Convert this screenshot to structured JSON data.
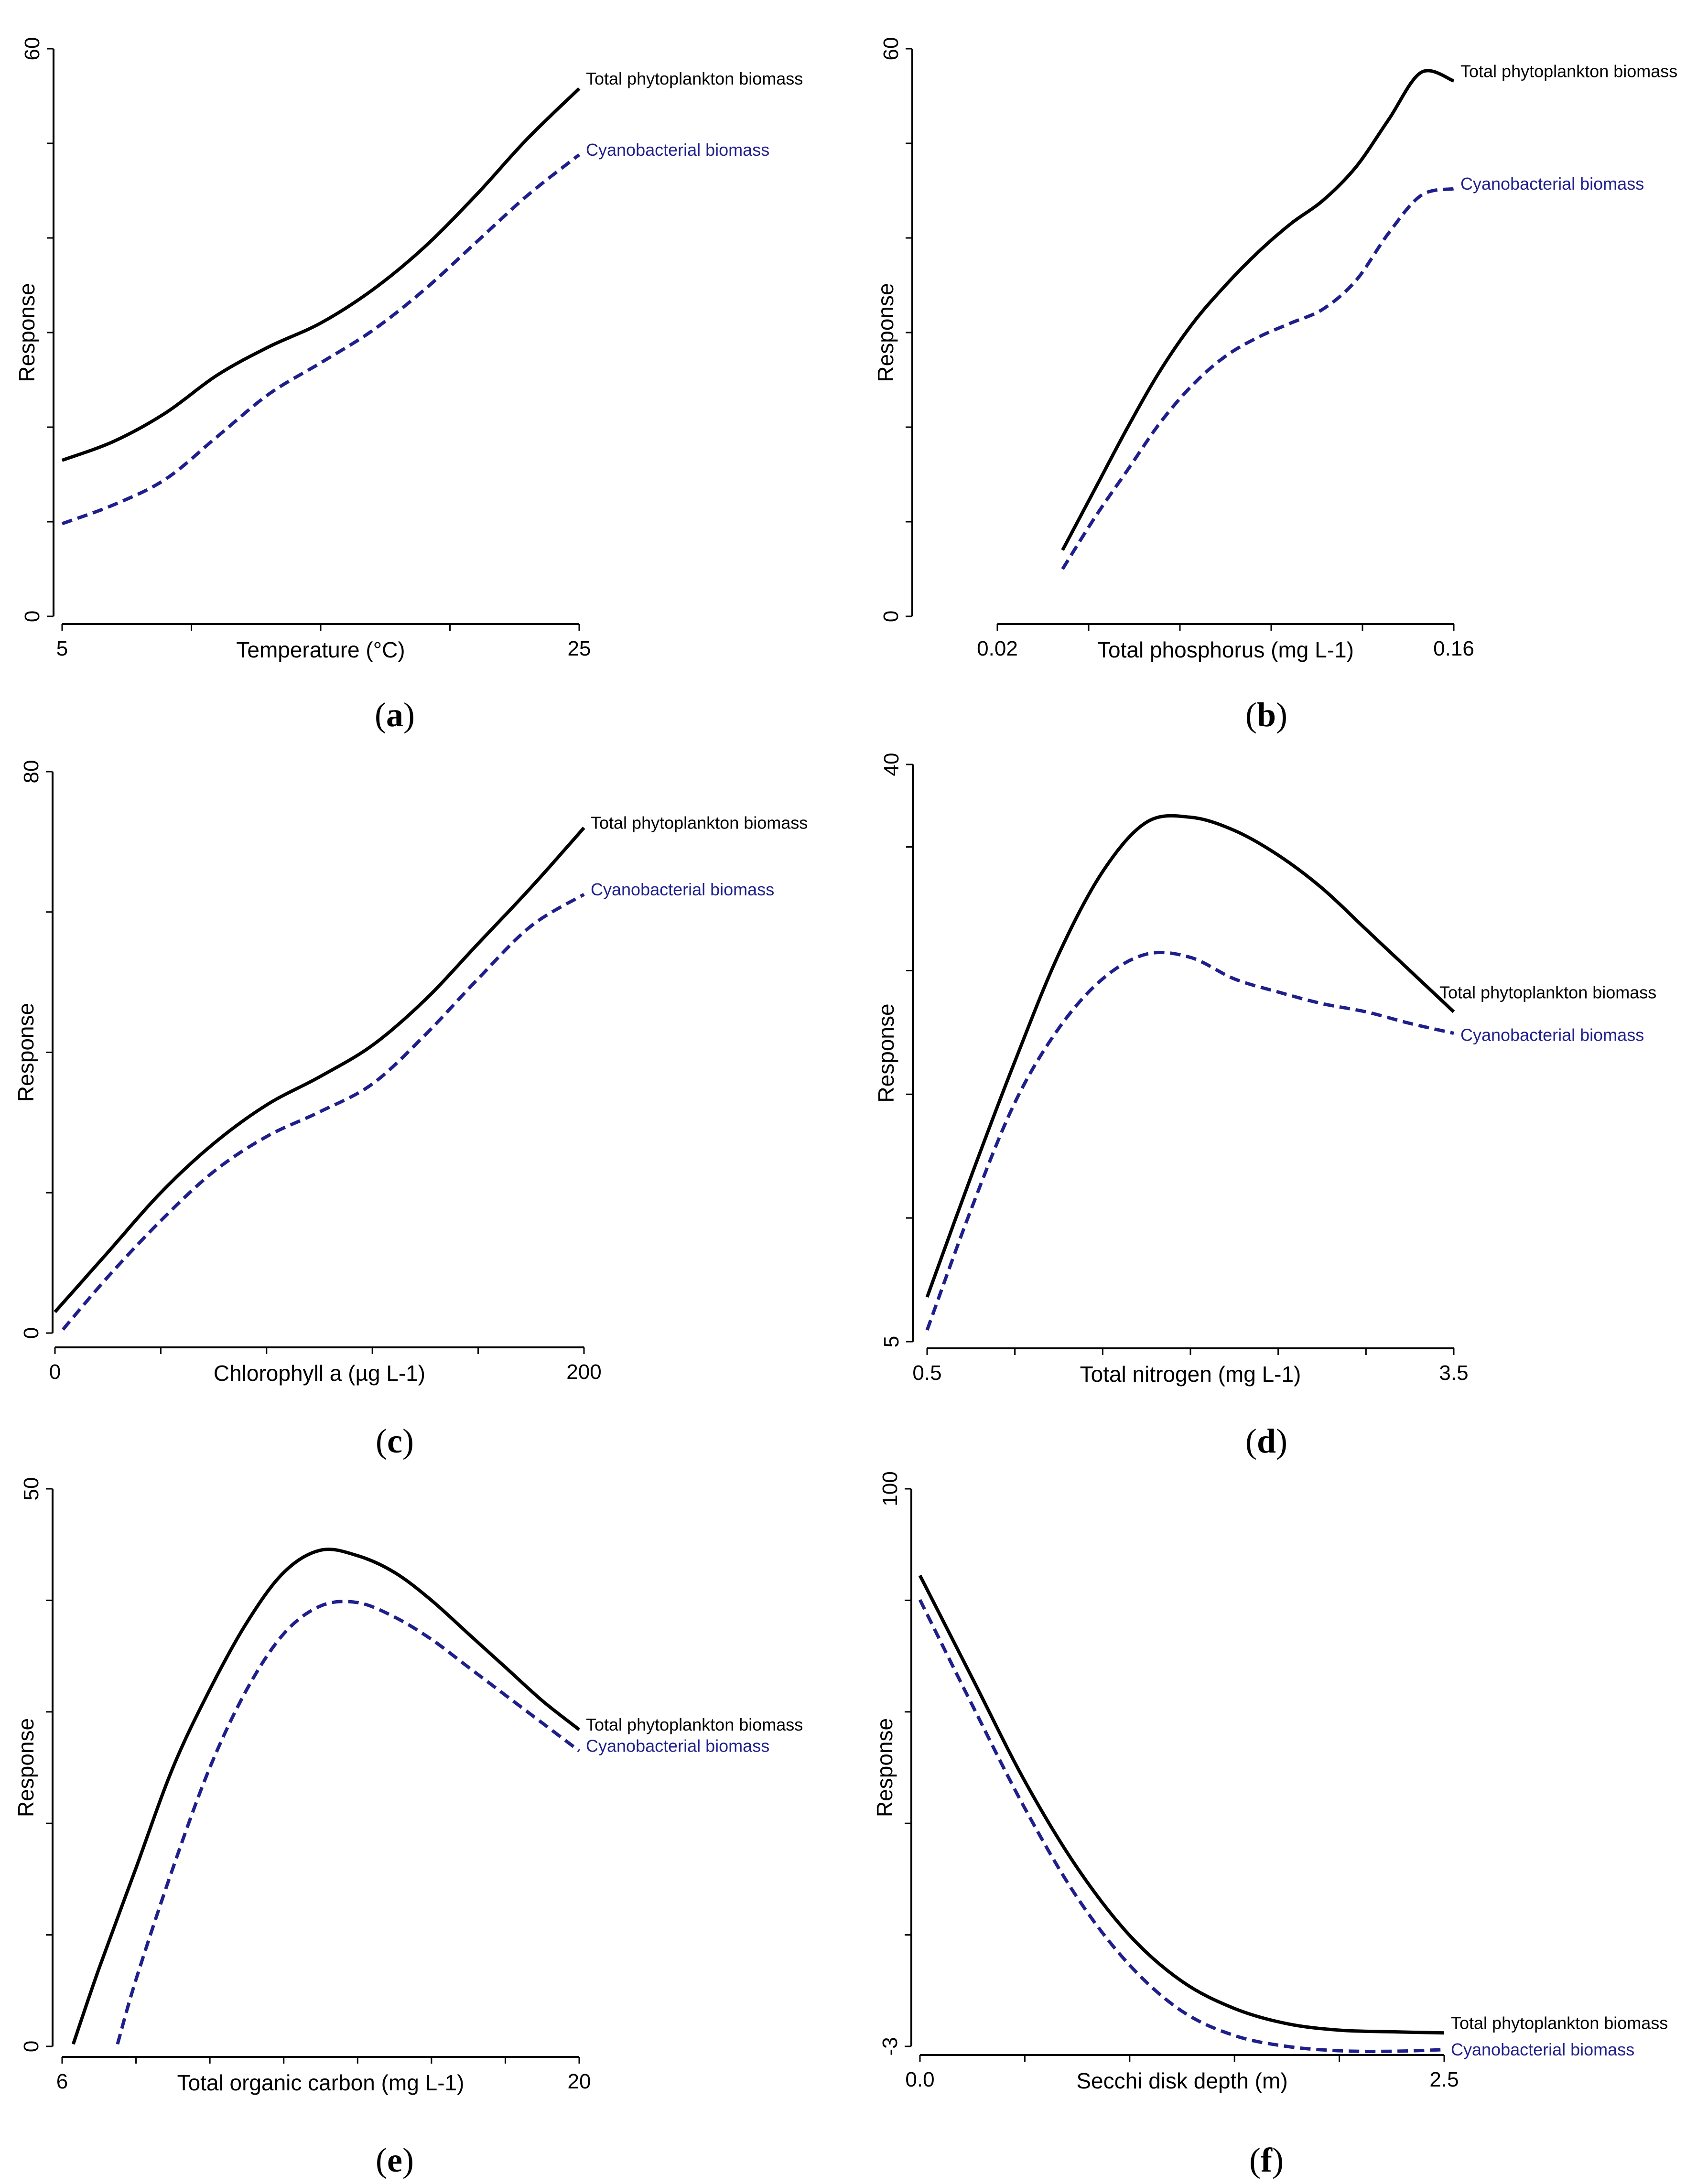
{
  "figure_labels": {
    "y_title": "Response",
    "series_total": "Total phytoplankton biomass",
    "series_cyano": "Cyanobacterial biomass"
  },
  "colors": {
    "total": "#000000",
    "cyano": "#1f1f8c",
    "axis": "#000000"
  },
  "chart_data": [
    {
      "type": "line",
      "panel": "(a)",
      "panel_letter": "a",
      "xlabel": "Temperature (°C)",
      "ylabel": "Response",
      "xlim": [
        5,
        25
      ],
      "ylim": [
        0,
        60
      ],
      "xticklabels": [
        {
          "v": 5,
          "t": "5"
        },
        {
          "v": 25,
          "t": "25"
        }
      ],
      "yticklabels": [
        {
          "v": 0,
          "t": "0"
        },
        {
          "v": 60,
          "t": "60"
        }
      ],
      "x_minor_ticks": [
        5,
        10,
        15,
        20,
        25
      ],
      "y_minor_ticks": [
        0,
        10,
        20,
        30,
        40,
        50,
        60
      ],
      "series": [
        {
          "name": "Total phytoplankton biomass",
          "style": "solid",
          "x": [
            5,
            7,
            9,
            11,
            13,
            15,
            17,
            19,
            21,
            23,
            25
          ],
          "values": [
            16.5,
            18.5,
            21.5,
            25.5,
            28.5,
            31,
            34.5,
            39,
            44.5,
            50.5,
            55.8
          ]
        },
        {
          "name": "Cyanobacterial biomass",
          "style": "dashed",
          "x": [
            5,
            7,
            9,
            11,
            13,
            15,
            17,
            19,
            21,
            23,
            25
          ],
          "values": [
            9.8,
            11.8,
            14.5,
            19,
            23.5,
            26.8,
            30.2,
            34.5,
            39.5,
            44.5,
            48.8
          ]
        }
      ]
    },
    {
      "type": "line",
      "panel": "(b)",
      "panel_letter": "b",
      "xlabel": "Total phosphorus (mg L-1)",
      "ylabel": "Response",
      "xlim": [
        0.02,
        0.16
      ],
      "ylim": [
        0,
        60
      ],
      "xticklabels": [
        {
          "v": 0.02,
          "t": "0.02"
        },
        {
          "v": 0.16,
          "t": "0.16"
        }
      ],
      "yticklabels": [
        {
          "v": 0,
          "t": "0"
        },
        {
          "v": 60,
          "t": "60"
        }
      ],
      "x_minor_ticks": [
        0.02,
        0.048,
        0.076,
        0.104,
        0.132,
        0.16
      ],
      "y_minor_ticks": [
        0,
        10,
        20,
        30,
        40,
        50,
        60
      ],
      "series": [
        {
          "name": "Total phytoplankton biomass",
          "style": "solid",
          "x": [
            0.04,
            0.05,
            0.06,
            0.07,
            0.08,
            0.09,
            0.1,
            0.11,
            0.12,
            0.13,
            0.14,
            0.15,
            0.16
          ],
          "values": [
            7,
            13.5,
            20,
            26,
            31,
            35,
            38.5,
            41.5,
            44,
            47.5,
            52.5,
            57.5,
            56.6
          ]
        },
        {
          "name": "Cyanobacterial biomass",
          "style": "dashed",
          "x": [
            0.04,
            0.05,
            0.06,
            0.07,
            0.08,
            0.09,
            0.1,
            0.11,
            0.12,
            0.13,
            0.14,
            0.15,
            0.16
          ],
          "values": [
            5,
            10.5,
            15.5,
            20.5,
            24.5,
            27.5,
            29.5,
            31,
            32.5,
            35.5,
            40.5,
            44.5,
            45.2
          ]
        }
      ]
    },
    {
      "type": "line",
      "panel": "(c)",
      "panel_letter": "c",
      "xlabel": "Chlorophyll a  (µg L-1)",
      "ylabel": "Response",
      "xlim": [
        0,
        200
      ],
      "ylim": [
        0,
        80
      ],
      "xticklabels": [
        {
          "v": 0,
          "t": "0"
        },
        {
          "v": 200,
          "t": "200"
        }
      ],
      "yticklabels": [
        {
          "v": 0,
          "t": "0"
        },
        {
          "v": 80,
          "t": "80"
        }
      ],
      "x_minor_ticks": [
        0,
        40,
        80,
        120,
        160,
        200
      ],
      "y_minor_ticks": [
        0,
        20,
        40,
        60,
        80
      ],
      "series": [
        {
          "name": "Total phytoplankton biomass",
          "style": "solid",
          "x": [
            0,
            20,
            40,
            60,
            80,
            100,
            120,
            140,
            160,
            180,
            200
          ],
          "values": [
            3,
            11.5,
            20,
            27,
            32.5,
            36.5,
            41,
            47.5,
            55.5,
            63.5,
            72
          ]
        },
        {
          "name": "Cyanobacterial biomass",
          "style": "dashed",
          "x": [
            3,
            20,
            40,
            60,
            80,
            100,
            120,
            140,
            160,
            180,
            200
          ],
          "values": [
            0.5,
            8,
            16,
            23,
            28,
            31.5,
            35.5,
            42.5,
            50.5,
            58,
            62.5
          ]
        }
      ]
    },
    {
      "type": "line",
      "panel": "(d)",
      "panel_letter": "d",
      "xlabel": "Total nitrogen (mg L-1)",
      "ylabel": "Response",
      "xlim": [
        0.5,
        3.5
      ],
      "ylim": [
        5,
        40
      ],
      "xticklabels": [
        {
          "v": 0.5,
          "t": "0.5"
        },
        {
          "v": 3.5,
          "t": "3.5"
        }
      ],
      "yticklabels": [
        {
          "v": 5,
          "t": "5"
        },
        {
          "v": 40,
          "t": "40"
        }
      ],
      "x_minor_ticks": [
        0.5,
        1.0,
        1.5,
        2.0,
        2.5,
        3.0,
        3.5
      ],
      "y_minor_ticks": [
        5,
        12.5,
        20,
        27.5,
        35,
        40
      ],
      "series": [
        {
          "name": "Total phytoplankton biomass",
          "style": "solid",
          "x": [
            0.5,
            0.75,
            1.0,
            1.25,
            1.5,
            1.75,
            2.0,
            2.25,
            2.5,
            2.75,
            3.0,
            3.25,
            3.5
          ],
          "values": [
            7.7,
            15,
            22,
            28.5,
            33.5,
            36.5,
            36.8,
            36,
            34.5,
            32.5,
            30,
            27.5,
            25
          ]
        },
        {
          "name": "Cyanobacterial biomass",
          "style": "dashed",
          "x": [
            0.5,
            0.75,
            1.0,
            1.25,
            1.5,
            1.75,
            2.0,
            2.25,
            2.5,
            2.75,
            3.0,
            3.25,
            3.5
          ],
          "values": [
            5.7,
            13,
            19.5,
            24,
            27,
            28.5,
            28.3,
            27,
            26.2,
            25.5,
            25,
            24.3,
            23.7
          ]
        }
      ]
    },
    {
      "type": "line",
      "panel": "(e)",
      "panel_letter": "e",
      "xlabel": "Total organic carbon (mg L-1)",
      "ylabel": "Response",
      "xlim": [
        6,
        20
      ],
      "ylim": [
        0,
        50
      ],
      "xticklabels": [
        {
          "v": 6,
          "t": "6"
        },
        {
          "v": 20,
          "t": "20"
        }
      ],
      "yticklabels": [
        {
          "v": 0,
          "t": "0"
        },
        {
          "v": 50,
          "t": "50"
        }
      ],
      "x_minor_ticks": [
        6,
        8,
        10,
        12,
        14,
        16,
        18,
        20
      ],
      "y_minor_ticks": [
        0,
        10,
        20,
        30,
        40,
        50
      ],
      "series": [
        {
          "name": "Total phytoplankton biomass",
          "style": "solid",
          "x": [
            6.3,
            7,
            8,
            9,
            10,
            11,
            12,
            13,
            14,
            15,
            16,
            17,
            18,
            19,
            20
          ],
          "values": [
            0.2,
            7,
            16,
            25,
            32,
            38,
            42.5,
            44.5,
            44,
            42.5,
            40,
            37,
            34,
            31,
            28.4
          ]
        },
        {
          "name": "Cyanobacterial biomass",
          "style": "dashed",
          "x": [
            7.5,
            8,
            9,
            10,
            11,
            12,
            13,
            14,
            15,
            16,
            17,
            18,
            19,
            20
          ],
          "values": [
            0.2,
            6,
            16,
            25,
            32,
            37,
            39.5,
            39.8,
            38.5,
            36.5,
            34,
            31.5,
            29,
            26.5
          ]
        }
      ]
    },
    {
      "type": "line",
      "panel": "(f)",
      "panel_letter": "f",
      "xlabel": "Secchi disk depth (m)",
      "ylabel": "Response",
      "xlim": [
        0.0,
        2.5
      ],
      "ylim": [
        -3,
        100
      ],
      "xticklabels": [
        {
          "v": 0.0,
          "t": "0.0"
        },
        {
          "v": 2.5,
          "t": "2.5"
        }
      ],
      "yticklabels": [
        {
          "v": -3,
          "t": "-3"
        },
        {
          "v": 100,
          "t": "100"
        }
      ],
      "x_minor_ticks": [
        0.0,
        0.5,
        1.0,
        1.5,
        2.0,
        2.5
      ],
      "y_minor_ticks": [
        -3,
        17.6,
        38.2,
        58.8,
        79.4,
        100
      ],
      "series": [
        {
          "name": "Total phytoplankton biomass",
          "style": "solid",
          "x": [
            0,
            0.25,
            0.5,
            0.75,
            1.0,
            1.25,
            1.5,
            1.75,
            2.0,
            2.25,
            2.5
          ],
          "values": [
            84,
            65,
            46,
            30,
            17.5,
            9,
            4,
            1.2,
            0,
            -0.3,
            -0.5
          ]
        },
        {
          "name": "Cyanobacterial biomass",
          "style": "dashed",
          "x": [
            0,
            0.25,
            0.5,
            0.75,
            1.0,
            1.25,
            1.5,
            1.75,
            2.0,
            2.25,
            2.5
          ],
          "values": [
            79.5,
            60,
            41,
            24.5,
            12,
            3.5,
            -1,
            -3,
            -3.8,
            -3.9,
            -3.6
          ]
        }
      ]
    }
  ]
}
